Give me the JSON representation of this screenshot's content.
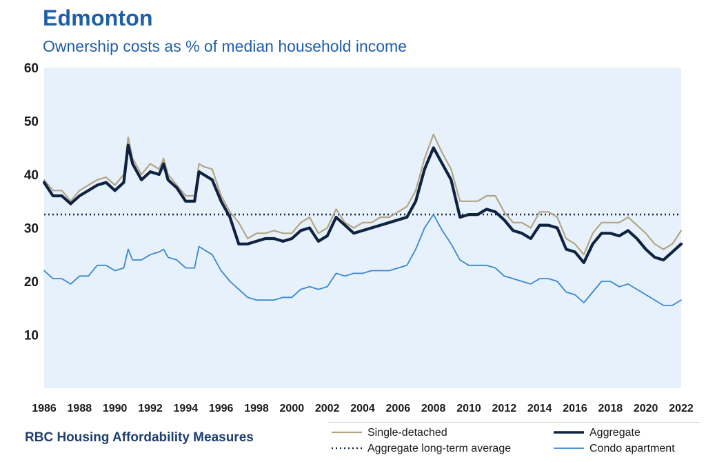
{
  "chart_data": {
    "type": "line",
    "title": "Edmonton",
    "subtitle": "Ownership costs as % of median household income",
    "footer": "RBC Housing Affordability Measures",
    "xlabel": "",
    "ylabel": "",
    "xlim": [
      1986,
      2022
    ],
    "ylim": [
      0,
      60
    ],
    "yticks": [
      10,
      20,
      30,
      40,
      50,
      60
    ],
    "xticks": [
      1986,
      1988,
      1990,
      1992,
      1994,
      1996,
      1998,
      2000,
      2002,
      2004,
      2006,
      2008,
      2010,
      2012,
      2014,
      2016,
      2018,
      2020,
      2022
    ],
    "background": "#e6f1fb",
    "grid": false,
    "legend_position": "bottom-right",
    "series": [
      {
        "name": "Single-detached",
        "color": "#b3a584",
        "style": "solid",
        "points": [
          [
            1986,
            39.0
          ],
          [
            1986.5,
            37.0
          ],
          [
            1987,
            37.0
          ],
          [
            1987.5,
            35.0
          ],
          [
            1988,
            37.0
          ],
          [
            1988.5,
            38.0
          ],
          [
            1989,
            39.0
          ],
          [
            1989.5,
            39.5
          ],
          [
            1990,
            38.0
          ],
          [
            1990.5,
            40.0
          ],
          [
            1990.75,
            47.0
          ],
          [
            1991,
            43.0
          ],
          [
            1991.5,
            40.0
          ],
          [
            1992,
            42.0
          ],
          [
            1992.5,
            41.0
          ],
          [
            1992.75,
            43.0
          ],
          [
            1993,
            40.0
          ],
          [
            1993.5,
            38.0
          ],
          [
            1994,
            36.0
          ],
          [
            1994.5,
            36.0
          ],
          [
            1994.75,
            42.0
          ],
          [
            1995,
            41.5
          ],
          [
            1995.5,
            41.0
          ],
          [
            1996,
            36.0
          ],
          [
            1996.5,
            33.0
          ],
          [
            1997,
            31.0
          ],
          [
            1997.5,
            28.0
          ],
          [
            1998,
            29.0
          ],
          [
            1998.5,
            29.0
          ],
          [
            1999,
            29.5
          ],
          [
            1999.5,
            29.0
          ],
          [
            2000,
            29.0
          ],
          [
            2000.5,
            31.0
          ],
          [
            2001,
            32.0
          ],
          [
            2001.5,
            29.0
          ],
          [
            2002,
            30.0
          ],
          [
            2002.5,
            33.5
          ],
          [
            2003,
            31.0
          ],
          [
            2003.5,
            30.0
          ],
          [
            2004,
            31.0
          ],
          [
            2004.5,
            31.0
          ],
          [
            2005,
            32.0
          ],
          [
            2005.5,
            32.0
          ],
          [
            2006,
            33.0
          ],
          [
            2006.5,
            34.0
          ],
          [
            2007,
            37.0
          ],
          [
            2007.5,
            43.0
          ],
          [
            2008,
            47.5
          ],
          [
            2008.5,
            44.0
          ],
          [
            2009,
            41.0
          ],
          [
            2009.5,
            35.0
          ],
          [
            2010,
            35.0
          ],
          [
            2010.5,
            35.0
          ],
          [
            2011,
            36.0
          ],
          [
            2011.5,
            36.0
          ],
          [
            2012,
            33.0
          ],
          [
            2012.5,
            31.0
          ],
          [
            2013,
            31.0
          ],
          [
            2013.5,
            30.0
          ],
          [
            2014,
            33.0
          ],
          [
            2014.5,
            33.0
          ],
          [
            2015,
            32.0
          ],
          [
            2015.5,
            28.0
          ],
          [
            2016,
            27.0
          ],
          [
            2016.5,
            25.0
          ],
          [
            2017,
            29.0
          ],
          [
            2017.5,
            31.0
          ],
          [
            2018,
            31.0
          ],
          [
            2018.5,
            31.0
          ],
          [
            2019,
            32.0
          ],
          [
            2019.5,
            30.5
          ],
          [
            2020,
            29.0
          ],
          [
            2020.5,
            27.0
          ],
          [
            2021,
            26.0
          ],
          [
            2021.5,
            27.0
          ],
          [
            2022,
            29.5
          ]
        ]
      },
      {
        "name": "Aggregate",
        "color": "#0f2240",
        "style": "solid",
        "points": [
          [
            1986,
            38.5
          ],
          [
            1986.5,
            36.0
          ],
          [
            1987,
            36.0
          ],
          [
            1987.5,
            34.5
          ],
          [
            1988,
            36.0
          ],
          [
            1988.5,
            37.0
          ],
          [
            1989,
            38.0
          ],
          [
            1989.5,
            38.5
          ],
          [
            1990,
            37.0
          ],
          [
            1990.5,
            38.5
          ],
          [
            1990.75,
            45.5
          ],
          [
            1991,
            42.0
          ],
          [
            1991.5,
            39.0
          ],
          [
            1992,
            40.5
          ],
          [
            1992.5,
            40.0
          ],
          [
            1992.75,
            42.0
          ],
          [
            1993,
            39.0
          ],
          [
            1993.5,
            37.5
          ],
          [
            1994,
            35.0
          ],
          [
            1994.5,
            35.0
          ],
          [
            1994.75,
            40.5
          ],
          [
            1995,
            40.0
          ],
          [
            1995.5,
            39.0
          ],
          [
            1996,
            35.0
          ],
          [
            1996.5,
            32.0
          ],
          [
            1997,
            27.0
          ],
          [
            1997.5,
            27.0
          ],
          [
            1998,
            27.5
          ],
          [
            1998.5,
            28.0
          ],
          [
            1999,
            28.0
          ],
          [
            1999.5,
            27.5
          ],
          [
            2000,
            28.0
          ],
          [
            2000.5,
            29.5
          ],
          [
            2001,
            30.0
          ],
          [
            2001.5,
            27.5
          ],
          [
            2002,
            28.5
          ],
          [
            2002.5,
            32.0
          ],
          [
            2003,
            30.5
          ],
          [
            2003.5,
            29.0
          ],
          [
            2004,
            29.5
          ],
          [
            2004.5,
            30.0
          ],
          [
            2005,
            30.5
          ],
          [
            2005.5,
            31.0
          ],
          [
            2006,
            31.5
          ],
          [
            2006.5,
            32.0
          ],
          [
            2007,
            35.0
          ],
          [
            2007.5,
            41.0
          ],
          [
            2008,
            45.0
          ],
          [
            2008.5,
            42.0
          ],
          [
            2009,
            39.0
          ],
          [
            2009.5,
            32.0
          ],
          [
            2010,
            32.5
          ],
          [
            2010.5,
            32.5
          ],
          [
            2011,
            33.5
          ],
          [
            2011.5,
            33.0
          ],
          [
            2012,
            31.5
          ],
          [
            2012.5,
            29.5
          ],
          [
            2013,
            29.0
          ],
          [
            2013.5,
            28.0
          ],
          [
            2014,
            30.5
          ],
          [
            2014.5,
            30.5
          ],
          [
            2015,
            30.0
          ],
          [
            2015.5,
            26.0
          ],
          [
            2016,
            25.5
          ],
          [
            2016.5,
            23.5
          ],
          [
            2017,
            27.0
          ],
          [
            2017.5,
            29.0
          ],
          [
            2018,
            29.0
          ],
          [
            2018.5,
            28.5
          ],
          [
            2019,
            29.5
          ],
          [
            2019.5,
            28.0
          ],
          [
            2020,
            26.0
          ],
          [
            2020.5,
            24.5
          ],
          [
            2021,
            24.0
          ],
          [
            2021.5,
            25.5
          ],
          [
            2022,
            27.0
          ]
        ]
      },
      {
        "name": "Aggregate long-term average",
        "color": "#0f2240",
        "style": "dotted",
        "points": [
          [
            1986,
            32.5
          ],
          [
            2022,
            32.5
          ]
        ]
      },
      {
        "name": "Condo apartment",
        "color": "#3a86cf",
        "style": "solid",
        "points": [
          [
            1986,
            22.0
          ],
          [
            1986.5,
            20.5
          ],
          [
            1987,
            20.5
          ],
          [
            1987.5,
            19.5
          ],
          [
            1988,
            21.0
          ],
          [
            1988.5,
            21.0
          ],
          [
            1989,
            23.0
          ],
          [
            1989.5,
            23.0
          ],
          [
            1990,
            22.0
          ],
          [
            1990.5,
            22.5
          ],
          [
            1990.75,
            26.0
          ],
          [
            1991,
            24.0
          ],
          [
            1991.5,
            24.0
          ],
          [
            1992,
            25.0
          ],
          [
            1992.5,
            25.5
          ],
          [
            1992.75,
            26.0
          ],
          [
            1993,
            24.5
          ],
          [
            1993.5,
            24.0
          ],
          [
            1994,
            22.5
          ],
          [
            1994.5,
            22.5
          ],
          [
            1994.75,
            26.5
          ],
          [
            1995,
            26.0
          ],
          [
            1995.5,
            25.0
          ],
          [
            1996,
            22.0
          ],
          [
            1996.5,
            20.0
          ],
          [
            1997,
            18.5
          ],
          [
            1997.5,
            17.0
          ],
          [
            1998,
            16.5
          ],
          [
            1998.5,
            16.5
          ],
          [
            1999,
            16.5
          ],
          [
            1999.5,
            17.0
          ],
          [
            2000,
            17.0
          ],
          [
            2000.5,
            18.5
          ],
          [
            2001,
            19.0
          ],
          [
            2001.5,
            18.5
          ],
          [
            2002,
            19.0
          ],
          [
            2002.5,
            21.5
          ],
          [
            2003,
            21.0
          ],
          [
            2003.5,
            21.5
          ],
          [
            2004,
            21.5
          ],
          [
            2004.5,
            22.0
          ],
          [
            2005,
            22.0
          ],
          [
            2005.5,
            22.0
          ],
          [
            2006,
            22.5
          ],
          [
            2006.5,
            23.0
          ],
          [
            2007,
            26.0
          ],
          [
            2007.5,
            30.0
          ],
          [
            2008,
            32.5
          ],
          [
            2008.5,
            29.5
          ],
          [
            2009,
            27.0
          ],
          [
            2009.5,
            24.0
          ],
          [
            2010,
            23.0
          ],
          [
            2010.5,
            23.0
          ],
          [
            2011,
            23.0
          ],
          [
            2011.5,
            22.5
          ],
          [
            2012,
            21.0
          ],
          [
            2012.5,
            20.5
          ],
          [
            2013,
            20.0
          ],
          [
            2013.5,
            19.5
          ],
          [
            2014,
            20.5
          ],
          [
            2014.5,
            20.5
          ],
          [
            2015,
            20.0
          ],
          [
            2015.5,
            18.0
          ],
          [
            2016,
            17.5
          ],
          [
            2016.5,
            16.0
          ],
          [
            2017,
            18.0
          ],
          [
            2017.5,
            20.0
          ],
          [
            2018,
            20.0
          ],
          [
            2018.5,
            19.0
          ],
          [
            2019,
            19.5
          ],
          [
            2019.5,
            18.5
          ],
          [
            2020,
            17.5
          ],
          [
            2020.5,
            16.5
          ],
          [
            2021,
            15.5
          ],
          [
            2021.5,
            15.5
          ],
          [
            2022,
            16.5
          ]
        ]
      }
    ]
  }
}
